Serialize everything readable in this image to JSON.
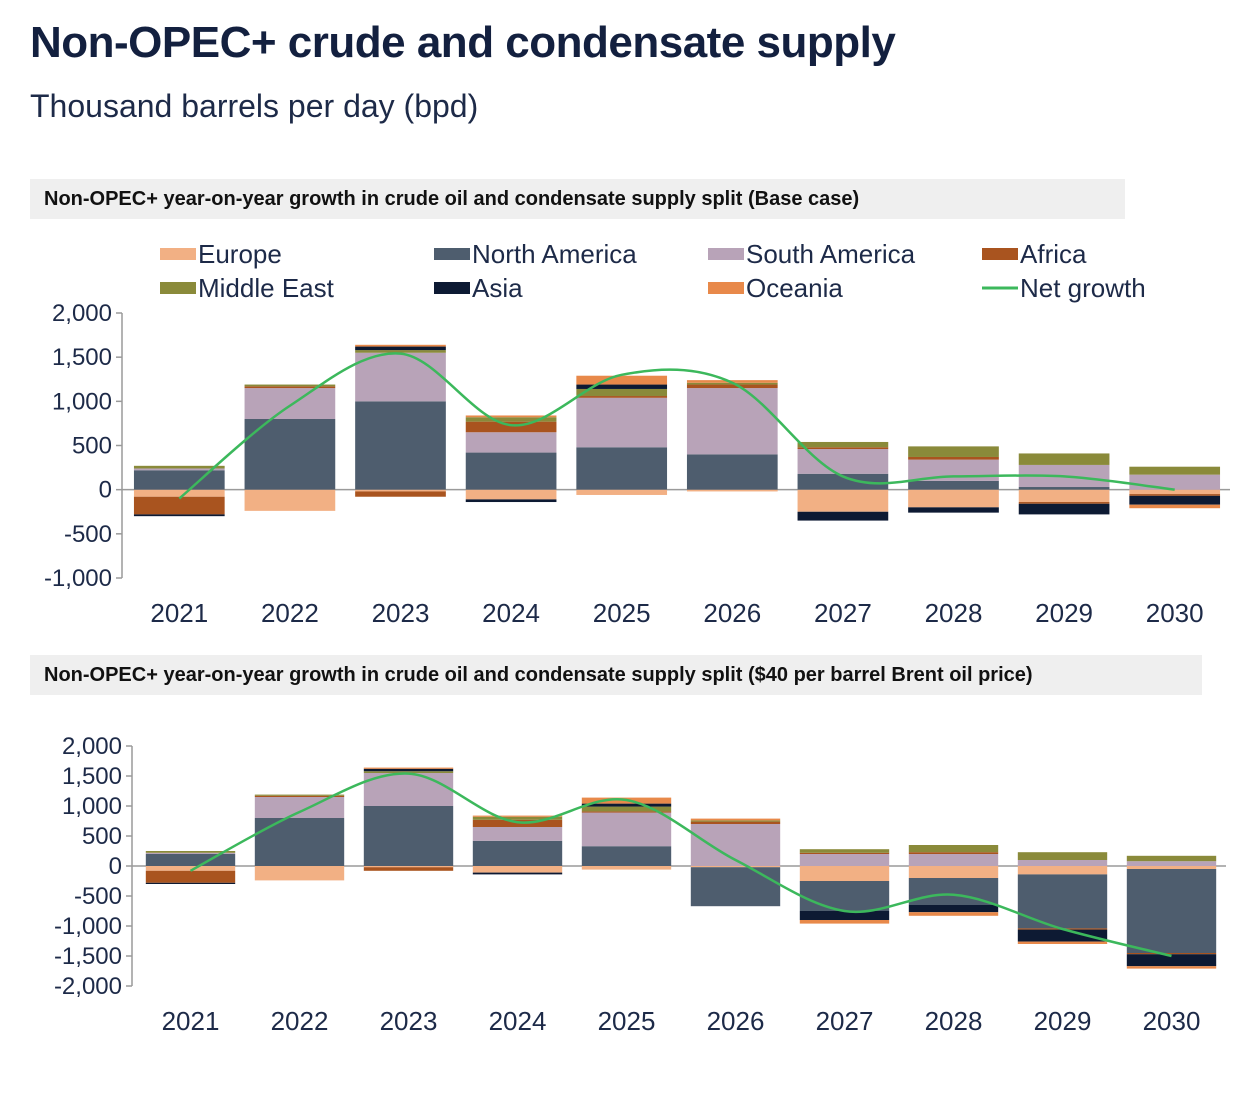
{
  "header": {
    "title": "Non-OPEC+ crude and condensate supply",
    "subtitle": "Thousand barrels per day (bpd)"
  },
  "legend": [
    {
      "name": "Europe",
      "color": "#f2b084",
      "kind": "bar"
    },
    {
      "name": "North America",
      "color": "#4e5d6e",
      "kind": "bar"
    },
    {
      "name": "South America",
      "color": "#b8a3b8",
      "kind": "bar"
    },
    {
      "name": "Africa",
      "color": "#a9541f",
      "kind": "bar"
    },
    {
      "name": "Middle East",
      "color": "#8a8a3a",
      "kind": "bar"
    },
    {
      "name": "Asia",
      "color": "#0d1a33",
      "kind": "bar"
    },
    {
      "name": "Oceania",
      "color": "#e8894a",
      "kind": "bar"
    },
    {
      "name": "Net growth",
      "color": "#3cb85c",
      "kind": "line"
    }
  ],
  "chart_data": [
    {
      "type": "bar",
      "stacked": true,
      "title": "Non-OPEC+ year-on-year growth in crude oil and condensate supply split (Base case)",
      "categories": [
        "2021",
        "2022",
        "2023",
        "2024",
        "2025",
        "2026",
        "2027",
        "2028",
        "2029",
        "2030"
      ],
      "ylim": [
        -1000,
        2000
      ],
      "yticks": [
        2000,
        1500,
        1000,
        500,
        0,
        -500,
        -1000
      ],
      "ytick_labels": [
        "2,000",
        "1,500",
        "1,000",
        "500",
        "0",
        "-500",
        "-1,000"
      ],
      "legend_position": "top",
      "series": [
        {
          "name": "Europe",
          "values": [
            -80,
            -240,
            -20,
            -110,
            -60,
            -20,
            -250,
            -200,
            -140,
            -50
          ]
        },
        {
          "name": "North America",
          "values": [
            220,
            800,
            1000,
            420,
            480,
            400,
            180,
            100,
            30,
            0
          ]
        },
        {
          "name": "South America",
          "values": [
            20,
            350,
            550,
            230,
            560,
            750,
            280,
            240,
            250,
            170
          ]
        },
        {
          "name": "Africa",
          "values": [
            -200,
            20,
            -60,
            120,
            20,
            40,
            20,
            30,
            -20,
            -20
          ]
        },
        {
          "name": "Middle East",
          "values": [
            30,
            20,
            30,
            50,
            80,
            20,
            60,
            120,
            130,
            90
          ]
        },
        {
          "name": "Asia",
          "values": [
            -20,
            0,
            40,
            -30,
            50,
            0,
            -100,
            -60,
            -120,
            -100
          ]
        },
        {
          "name": "Oceania",
          "values": [
            0,
            0,
            20,
            20,
            100,
            30,
            0,
            0,
            0,
            -40
          ]
        }
      ],
      "net_growth": [
        -100,
        950,
        1540,
        730,
        1300,
        1210,
        150,
        150,
        150,
        0
      ]
    },
    {
      "type": "bar",
      "stacked": true,
      "title": "Non-OPEC+ year-on-year growth in crude oil and condensate supply split ($40 per barrel Brent oil price)",
      "categories": [
        "2021",
        "2022",
        "2023",
        "2024",
        "2025",
        "2026",
        "2027",
        "2028",
        "2029",
        "2030"
      ],
      "ylim": [
        -2000,
        2000
      ],
      "yticks": [
        2000,
        1500,
        1000,
        500,
        0,
        -500,
        -1000,
        -1500,
        -2000
      ],
      "ytick_labels": [
        "2,000",
        "1,500",
        "1,000",
        "500",
        "0",
        "-500",
        "-1,000",
        "-1,500",
        "-2,000"
      ],
      "series": [
        {
          "name": "Europe",
          "values": [
            -80,
            -240,
            -20,
            -110,
            -60,
            -20,
            -250,
            -200,
            -140,
            -50
          ]
        },
        {
          "name": "North America",
          "values": [
            200,
            800,
            1000,
            420,
            330,
            -650,
            -500,
            -450,
            -900,
            -1400
          ]
        },
        {
          "name": "South America",
          "values": [
            20,
            350,
            550,
            230,
            560,
            700,
            200,
            200,
            100,
            80
          ]
        },
        {
          "name": "Africa",
          "values": [
            -200,
            20,
            -60,
            120,
            20,
            40,
            20,
            30,
            -20,
            -20
          ]
        },
        {
          "name": "Middle East",
          "values": [
            30,
            20,
            30,
            50,
            80,
            20,
            60,
            120,
            130,
            90
          ]
        },
        {
          "name": "Asia",
          "values": [
            -20,
            0,
            40,
            -30,
            50,
            0,
            -150,
            -120,
            -200,
            -200
          ]
        },
        {
          "name": "Oceania",
          "values": [
            0,
            0,
            20,
            20,
            100,
            30,
            -60,
            -60,
            -40,
            -40
          ]
        }
      ],
      "net_growth": [
        -80,
        900,
        1540,
        730,
        1100,
        100,
        -750,
        -480,
        -1050,
        -1500
      ]
    }
  ]
}
